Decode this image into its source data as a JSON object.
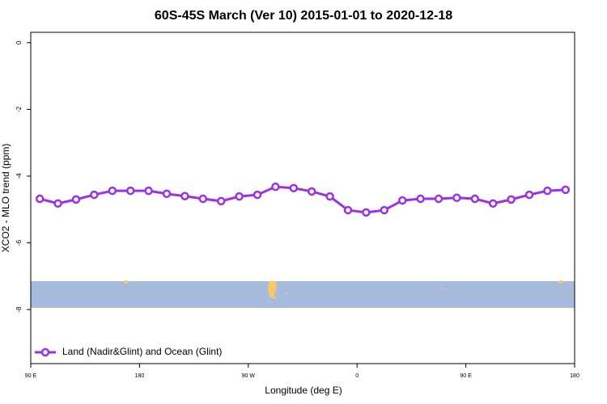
{
  "chart_data": {
    "type": "line",
    "title": "60S-45S March (Ver 10)   2015-01-01 to 2020-12-18",
    "x_label": "Longitude (deg E)",
    "y_label": "XCO2 - MLO trend (ppm)",
    "xlim": [
      90,
      540
    ],
    "ylim": [
      -9.62,
      0.31
    ],
    "xticks": [
      {
        "value": 90,
        "label": "90 E"
      },
      {
        "value": 180,
        "label": "180"
      },
      {
        "value": 270,
        "label": "90 W"
      },
      {
        "value": 360,
        "label": "0"
      },
      {
        "value": 450,
        "label": "90 E"
      },
      {
        "value": 540,
        "label": "180"
      }
    ],
    "yticks": [
      0,
      -2,
      -4,
      -6,
      -8
    ],
    "x": [
      97.5,
      112.5,
      127.5,
      142.5,
      157.5,
      172.5,
      187.5,
      202.5,
      217.5,
      232.5,
      247.5,
      262.5,
      277.5,
      292.5,
      307.5,
      322.5,
      337.5,
      352.5,
      367.5,
      382.5,
      397.5,
      412.5,
      427.5,
      442.5,
      457.5,
      472.5,
      487.5,
      502.5,
      517.5,
      532.5
    ],
    "series": [
      {
        "name": "Land (Nadir&Glint) and Ocean (Glint)",
        "color": "#9b30e8",
        "values": [
          -4.68,
          -4.82,
          -4.7,
          -4.56,
          -4.44,
          -4.44,
          -4.44,
          -4.53,
          -4.6,
          -4.68,
          -4.75,
          -4.61,
          -4.56,
          -4.32,
          -4.36,
          -4.46,
          -4.61,
          -5.02,
          -5.09,
          -5.02,
          -4.73,
          -4.68,
          -4.68,
          -4.65,
          -4.68,
          -4.82,
          -4.7,
          -4.56,
          -4.44,
          -4.41
        ]
      }
    ],
    "legend": "bottom-left"
  }
}
